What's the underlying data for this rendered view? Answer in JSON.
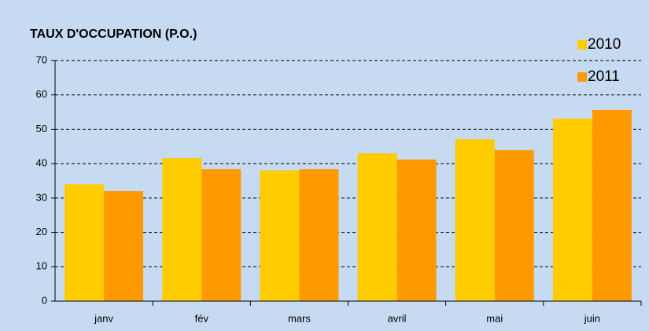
{
  "chart_data": {
    "type": "bar",
    "title": "TAUX D'OCCUPATION (P.O.)",
    "categories": [
      "janv",
      "fév",
      "mars",
      "avril",
      "mai",
      "juin"
    ],
    "series": [
      {
        "name": "2010",
        "color": "#ffcc00",
        "values": [
          34,
          41.6,
          38,
          43,
          47.1,
          53.1
        ]
      },
      {
        "name": "2011",
        "color": "#ff9900",
        "values": [
          32,
          38.4,
          38.4,
          41.2,
          43.9,
          55.6
        ]
      }
    ],
    "ylim": [
      0,
      70
    ],
    "yticks": [
      0,
      10,
      20,
      30,
      40,
      50,
      60,
      70
    ],
    "grid": true,
    "legend": "top-right"
  }
}
